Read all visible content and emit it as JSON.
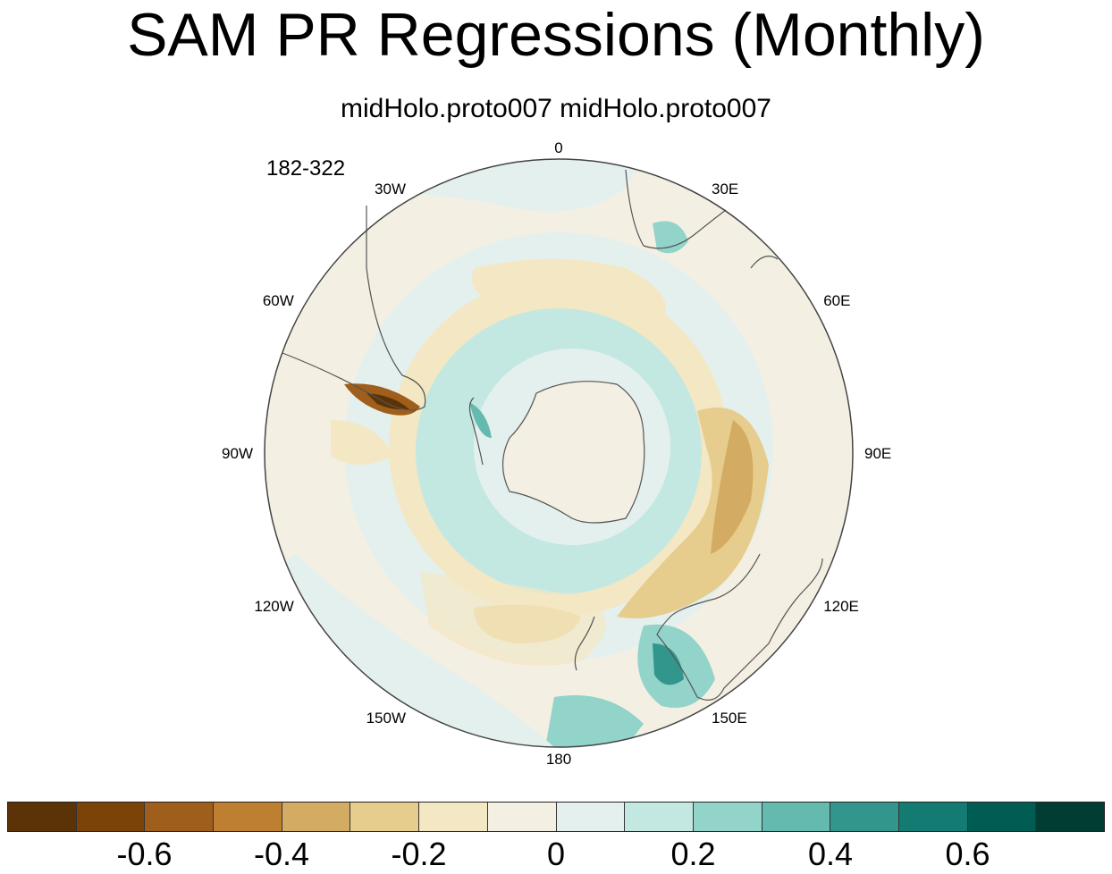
{
  "chart_data": {
    "type": "heatmap",
    "title": "SAM PR Regressions (Monthly)",
    "subtitle": "midHolo.proto007  midHolo.proto007",
    "period_label": "182-322",
    "projection": "south polar stereographic",
    "longitude_labels": [
      "0",
      "30E",
      "60E",
      "90E",
      "120E",
      "150E",
      "180",
      "150W",
      "120W",
      "90W",
      "60W",
      "30W"
    ],
    "colorbar": {
      "colors": [
        "#5b3306",
        "#7c4309",
        "#9f5e1b",
        "#be8030",
        "#d4ab63",
        "#e6cd8e",
        "#f4e7c3",
        "#f4efe3",
        "#e4f0ee",
        "#c3e8e2",
        "#92d3ca",
        "#64baae",
        "#33968d",
        "#137b72",
        "#015d53",
        "#013d33"
      ],
      "labels": [
        "-0.6",
        "-0.4",
        "-0.2",
        "0",
        "0.2",
        "0.4",
        "0.6"
      ],
      "label_values": [
        -0.6,
        -0.4,
        -0.2,
        0,
        0.2,
        0.4,
        0.6
      ],
      "levels": [
        -0.7,
        -0.6,
        -0.5,
        -0.4,
        -0.3,
        -0.2,
        -0.1,
        -0.05,
        0.05,
        0.1,
        0.2,
        0.3,
        0.4,
        0.5,
        0.6,
        0.7
      ],
      "range": [
        -0.8,
        0.8
      ]
    }
  }
}
